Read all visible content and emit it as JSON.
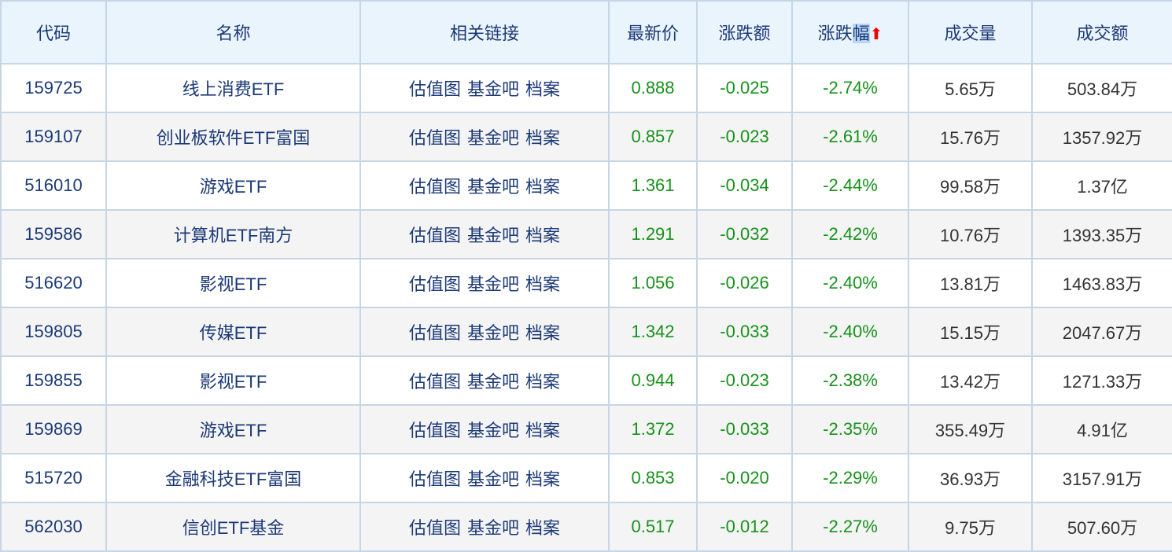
{
  "headers": [
    "代码",
    "名称",
    "相关链接",
    "最新价",
    "涨跌额",
    "涨跌幅",
    "成交量",
    "成交额"
  ],
  "sort_icon": "arrow-up-icon",
  "link_labels": [
    "估值图",
    "基金吧",
    "档案"
  ],
  "colors": {
    "header_bg": "#eaf4fd",
    "text_blue": "#1c3a78",
    "down_green": "#16921a",
    "sort_arrow": "#e00000"
  },
  "rows": [
    {
      "code": "159725",
      "name": "线上消费ETF",
      "price": "0.888",
      "change": "-0.025",
      "pct": "-2.74%",
      "volume": "5.65万",
      "amount": "503.84万"
    },
    {
      "code": "159107",
      "name": "创业板软件ETF富国",
      "price": "0.857",
      "change": "-0.023",
      "pct": "-2.61%",
      "volume": "15.76万",
      "amount": "1357.92万"
    },
    {
      "code": "516010",
      "name": "游戏ETF",
      "price": "1.361",
      "change": "-0.034",
      "pct": "-2.44%",
      "volume": "99.58万",
      "amount": "1.37亿"
    },
    {
      "code": "159586",
      "name": "计算机ETF南方",
      "price": "1.291",
      "change": "-0.032",
      "pct": "-2.42%",
      "volume": "10.76万",
      "amount": "1393.35万"
    },
    {
      "code": "516620",
      "name": "影视ETF",
      "price": "1.056",
      "change": "-0.026",
      "pct": "-2.40%",
      "volume": "13.81万",
      "amount": "1463.83万"
    },
    {
      "code": "159805",
      "name": "传媒ETF",
      "price": "1.342",
      "change": "-0.033",
      "pct": "-2.40%",
      "volume": "15.15万",
      "amount": "2047.67万"
    },
    {
      "code": "159855",
      "name": "影视ETF",
      "price": "0.944",
      "change": "-0.023",
      "pct": "-2.38%",
      "volume": "13.42万",
      "amount": "1271.33万"
    },
    {
      "code": "159869",
      "name": "游戏ETF",
      "price": "1.372",
      "change": "-0.033",
      "pct": "-2.35%",
      "volume": "355.49万",
      "amount": "4.91亿"
    },
    {
      "code": "515720",
      "name": "金融科技ETF富国",
      "price": "0.853",
      "change": "-0.020",
      "pct": "-2.29%",
      "volume": "36.93万",
      "amount": "3157.91万"
    },
    {
      "code": "562030",
      "name": "信创ETF基金",
      "price": "0.517",
      "change": "-0.012",
      "pct": "-2.27%",
      "volume": "9.75万",
      "amount": "507.60万"
    }
  ]
}
